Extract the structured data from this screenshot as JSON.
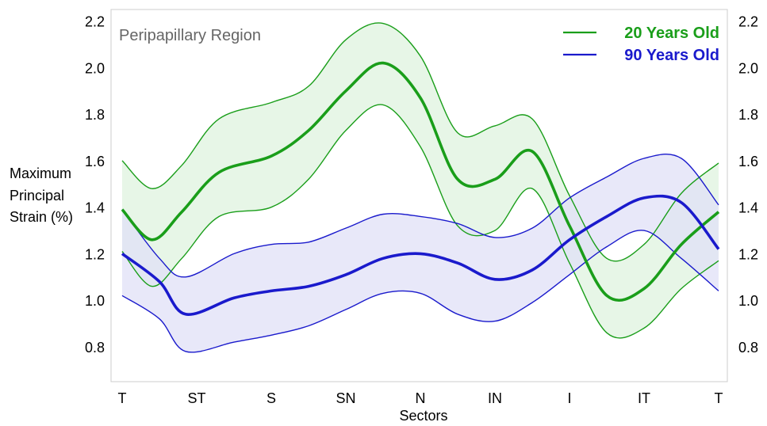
{
  "chart_data": {
    "type": "line",
    "title": "Peripapillary Region",
    "xlabel": "Sectors",
    "ylabel_lines": [
      "Maximum",
      "Principal",
      "Strain (%)"
    ],
    "categories": [
      "T",
      "ST",
      "S",
      "SN",
      "N",
      "IN",
      "I",
      "IT",
      "T"
    ],
    "ylim": [
      0.65,
      2.25
    ],
    "yticks": [
      0.8,
      1.0,
      1.2,
      1.4,
      1.6,
      1.8,
      2.0,
      2.2
    ],
    "ytick_labels": [
      "0.8",
      "1.0",
      "1.2",
      "1.4",
      "1.6",
      "1.8",
      "2.0",
      "2.2"
    ],
    "grid": false,
    "legend_position": "top-right",
    "series": [
      {
        "name": "20 Years Old",
        "color": "#1a9e1a",
        "fill": "#dff3df",
        "x": [
          0,
          0.4,
          0.8,
          1.3,
          2.0,
          2.5,
          3.0,
          3.5,
          4.0,
          4.5,
          5.0,
          5.5,
          6.0,
          6.5,
          7.0,
          7.5,
          8.0
        ],
        "mean": [
          1.39,
          1.26,
          1.38,
          1.55,
          1.62,
          1.73,
          1.9,
          2.02,
          1.87,
          1.52,
          1.52,
          1.64,
          1.32,
          1.02,
          1.05,
          1.24,
          1.38
        ],
        "upper": [
          1.6,
          1.48,
          1.58,
          1.78,
          1.85,
          1.92,
          2.12,
          2.19,
          2.05,
          1.72,
          1.75,
          1.78,
          1.45,
          1.18,
          1.24,
          1.46,
          1.59
        ],
        "lower": [
          1.21,
          1.06,
          1.18,
          1.36,
          1.4,
          1.52,
          1.73,
          1.84,
          1.66,
          1.32,
          1.3,
          1.48,
          1.16,
          0.86,
          0.88,
          1.05,
          1.17
        ]
      },
      {
        "name": "90 Years Old",
        "color": "#1a1acc",
        "fill": "#e0e0f7",
        "x": [
          0,
          0.5,
          0.85,
          1.5,
          2.0,
          2.5,
          3.0,
          3.5,
          4.0,
          4.5,
          5.0,
          5.5,
          6.0,
          6.5,
          7.0,
          7.5,
          8.0
        ],
        "mean": [
          1.2,
          1.08,
          0.94,
          1.01,
          1.04,
          1.06,
          1.11,
          1.18,
          1.2,
          1.16,
          1.09,
          1.13,
          1.26,
          1.36,
          1.44,
          1.42,
          1.22
        ],
        "upper": [
          1.39,
          1.18,
          1.1,
          1.2,
          1.24,
          1.25,
          1.31,
          1.37,
          1.36,
          1.33,
          1.27,
          1.31,
          1.44,
          1.53,
          1.61,
          1.61,
          1.41
        ],
        "lower": [
          1.02,
          0.92,
          0.78,
          0.82,
          0.85,
          0.89,
          0.96,
          1.03,
          1.03,
          0.94,
          0.91,
          0.99,
          1.11,
          1.23,
          1.3,
          1.18,
          1.04
        ]
      }
    ]
  }
}
